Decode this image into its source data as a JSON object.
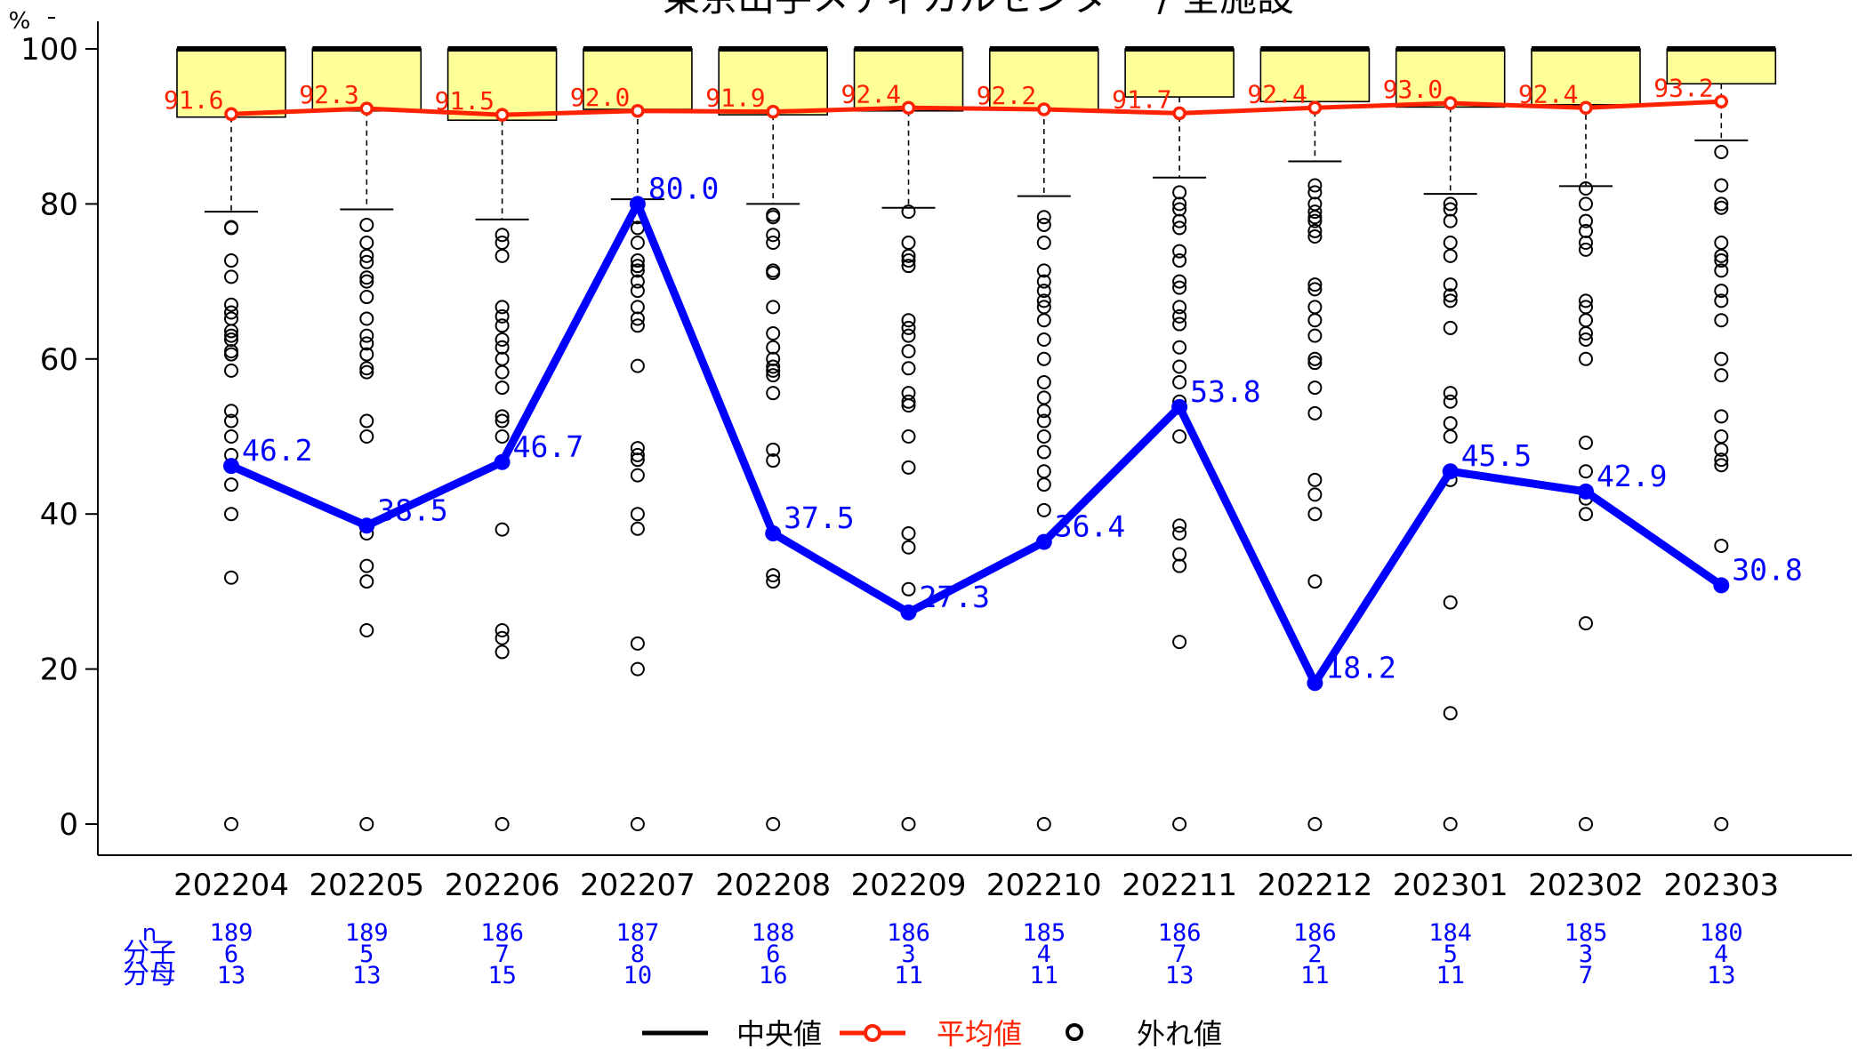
{
  "chart_data": {
    "type": "line",
    "title": "東京山手メディカルセンター / 全施設",
    "y_unit_label": "%",
    "ylim": [
      0,
      100
    ],
    "y_ticks": [
      0,
      20,
      40,
      60,
      80,
      100
    ],
    "categories": [
      "202204",
      "202205",
      "202206",
      "202207",
      "202208",
      "202209",
      "202210",
      "202211",
      "202212",
      "202301",
      "202302",
      "202303"
    ],
    "facility_series": {
      "values": [
        46.2,
        38.5,
        46.7,
        80.0,
        37.5,
        27.3,
        36.4,
        53.8,
        18.2,
        45.5,
        42.9,
        30.8
      ],
      "labels": [
        "46.2",
        "38.5",
        "46.7",
        "80.0",
        "37.5",
        "27.3",
        "36.4",
        "53.8",
        "18.2",
        "45.5",
        "42.9",
        "30.8"
      ],
      "color": "#0000ff"
    },
    "mean_series": {
      "name": "平均値",
      "values": [
        91.6,
        92.3,
        91.5,
        92.0,
        91.9,
        92.4,
        92.2,
        91.7,
        92.4,
        93.0,
        92.4,
        93.2
      ],
      "labels": [
        "91.6",
        "92.3",
        "91.5",
        "92.0",
        "91.9",
        "92.4",
        "92.2",
        "91.7",
        "92.4",
        "93.0",
        "92.4",
        "93.2"
      ],
      "color": "#ff2200"
    },
    "boxplots": [
      {
        "q1": 91.2,
        "median": 100,
        "q3": 100,
        "whisker_low": 79.0,
        "whisker_high": 100
      },
      {
        "q1": 92.0,
        "median": 100,
        "q3": 100,
        "whisker_low": 79.3,
        "whisker_high": 100
      },
      {
        "q1": 90.8,
        "median": 100,
        "q3": 100,
        "whisker_low": 78.0,
        "whisker_high": 100
      },
      {
        "q1": 92.2,
        "median": 100,
        "q3": 100,
        "whisker_low": 80.6,
        "whisker_high": 100
      },
      {
        "q1": 91.5,
        "median": 100,
        "q3": 100,
        "whisker_low": 80.0,
        "whisker_high": 100
      },
      {
        "q1": 92.0,
        "median": 100,
        "q3": 100,
        "whisker_low": 79.5,
        "whisker_high": 100
      },
      {
        "q1": 92.2,
        "median": 100,
        "q3": 100,
        "whisker_low": 81.0,
        "whisker_high": 100
      },
      {
        "q1": 93.8,
        "median": 100,
        "q3": 100,
        "whisker_low": 83.4,
        "whisker_high": 100
      },
      {
        "q1": 93.2,
        "median": 100,
        "q3": 100,
        "whisker_low": 85.5,
        "whisker_high": 100
      },
      {
        "q1": 92.5,
        "median": 100,
        "q3": 100,
        "whisker_low": 81.3,
        "whisker_high": 100
      },
      {
        "q1": 92.8,
        "median": 100,
        "q3": 100,
        "whisker_low": 82.3,
        "whisker_high": 100
      },
      {
        "q1": 95.5,
        "median": 100,
        "q3": 100,
        "whisker_low": 88.2,
        "whisker_high": 100
      }
    ],
    "outliers": [
      [
        77,
        76.9,
        72.7,
        70.6,
        67,
        66,
        65.2,
        63.6,
        63,
        62.5,
        61,
        60.6,
        58.5,
        53.3,
        52,
        50,
        47.6,
        43.8,
        40,
        31.8,
        0
      ],
      [
        77.3,
        75,
        73.3,
        72.5,
        70.5,
        70,
        68,
        65.2,
        63,
        62,
        60.6,
        58.8,
        58.3,
        52,
        50,
        38.5,
        37.5,
        33.3,
        31.3,
        25,
        0
      ],
      [
        76,
        75,
        73.3,
        66.7,
        65.5,
        64.3,
        62.5,
        61.5,
        60,
        58.3,
        56.3,
        52.6,
        52,
        50,
        38,
        25,
        24,
        22.2,
        0
      ],
      [
        78.3,
        76.9,
        75,
        72.7,
        72,
        71.4,
        70,
        68.8,
        66.7,
        65.2,
        64.3,
        59.1,
        48.5,
        47.6,
        47,
        45,
        40,
        38.1,
        23.3,
        20,
        0
      ],
      [
        78.6,
        78.3,
        76,
        75,
        71.4,
        71.1,
        66.7,
        63.3,
        61.5,
        60,
        59,
        58.5,
        57.9,
        55.6,
        48.3,
        46.9,
        32.1,
        31.3,
        0
      ],
      [
        79,
        75,
        73.3,
        72.7,
        72,
        65,
        64,
        63,
        61,
        58.8,
        55.6,
        54.5,
        54,
        50,
        46,
        37.5,
        35.7,
        30.3,
        0
      ],
      [
        78.3,
        77.3,
        75,
        71.4,
        70,
        68.8,
        67.5,
        66.7,
        65,
        62.5,
        60,
        57,
        55,
        53.3,
        52,
        50,
        48,
        45.5,
        43.8,
        40.5,
        0
      ],
      [
        81.5,
        80,
        79.3,
        77.8,
        76.9,
        73.9,
        72.7,
        70,
        69.2,
        66.7,
        65.5,
        64.5,
        61.5,
        59,
        57,
        54.5,
        50,
        38.5,
        37.5,
        34.8,
        33.3,
        23.5,
        0
      ],
      [
        82.4,
        81.5,
        80,
        79,
        78.3,
        77.8,
        76.5,
        75.8,
        69.6,
        69,
        66.7,
        65,
        63,
        60,
        59.5,
        56.3,
        53,
        44.4,
        42.5,
        40,
        31.3,
        0
      ],
      [
        80,
        79.3,
        77.8,
        75,
        73.3,
        69.6,
        68.2,
        67.5,
        64,
        55.6,
        54.5,
        51.7,
        50,
        45.5,
        44.4,
        28.6,
        14.3,
        0
      ],
      [
        82,
        80,
        77.8,
        76.5,
        75,
        74.1,
        67.5,
        66.7,
        65,
        63.3,
        62.5,
        60,
        49.2,
        45.5,
        43,
        42,
        40,
        25.9,
        0
      ],
      [
        86.7,
        82.4,
        80,
        79.5,
        75,
        73.3,
        72.7,
        71.4,
        68.8,
        67.5,
        65,
        60,
        57.9,
        52.6,
        50,
        48.3,
        47,
        46.3,
        35.9,
        0
      ]
    ],
    "counts": {
      "labels": [
        "n",
        "分子",
        "分母"
      ],
      "n": [
        "189",
        "189",
        "186",
        "187",
        "188",
        "186",
        "185",
        "186",
        "186",
        "184",
        "185",
        "180"
      ],
      "num": [
        "6",
        "5",
        "7",
        "8",
        "6",
        "3",
        "4",
        "7",
        "2",
        "5",
        "3",
        "4"
      ],
      "den": [
        "13",
        "13",
        "15",
        "10",
        "16",
        "11",
        "11",
        "13",
        "11",
        "11",
        "7",
        "13"
      ]
    },
    "legend": {
      "median": "中央値",
      "mean": "平均値",
      "outlier": "外れ値",
      "placement": "bottom"
    },
    "colors": {
      "box_fill": "#ffff99",
      "box_stroke": "#000000",
      "facility": "#0000ff",
      "mean": "#ff2200",
      "count_text": "#0000ff"
    }
  }
}
